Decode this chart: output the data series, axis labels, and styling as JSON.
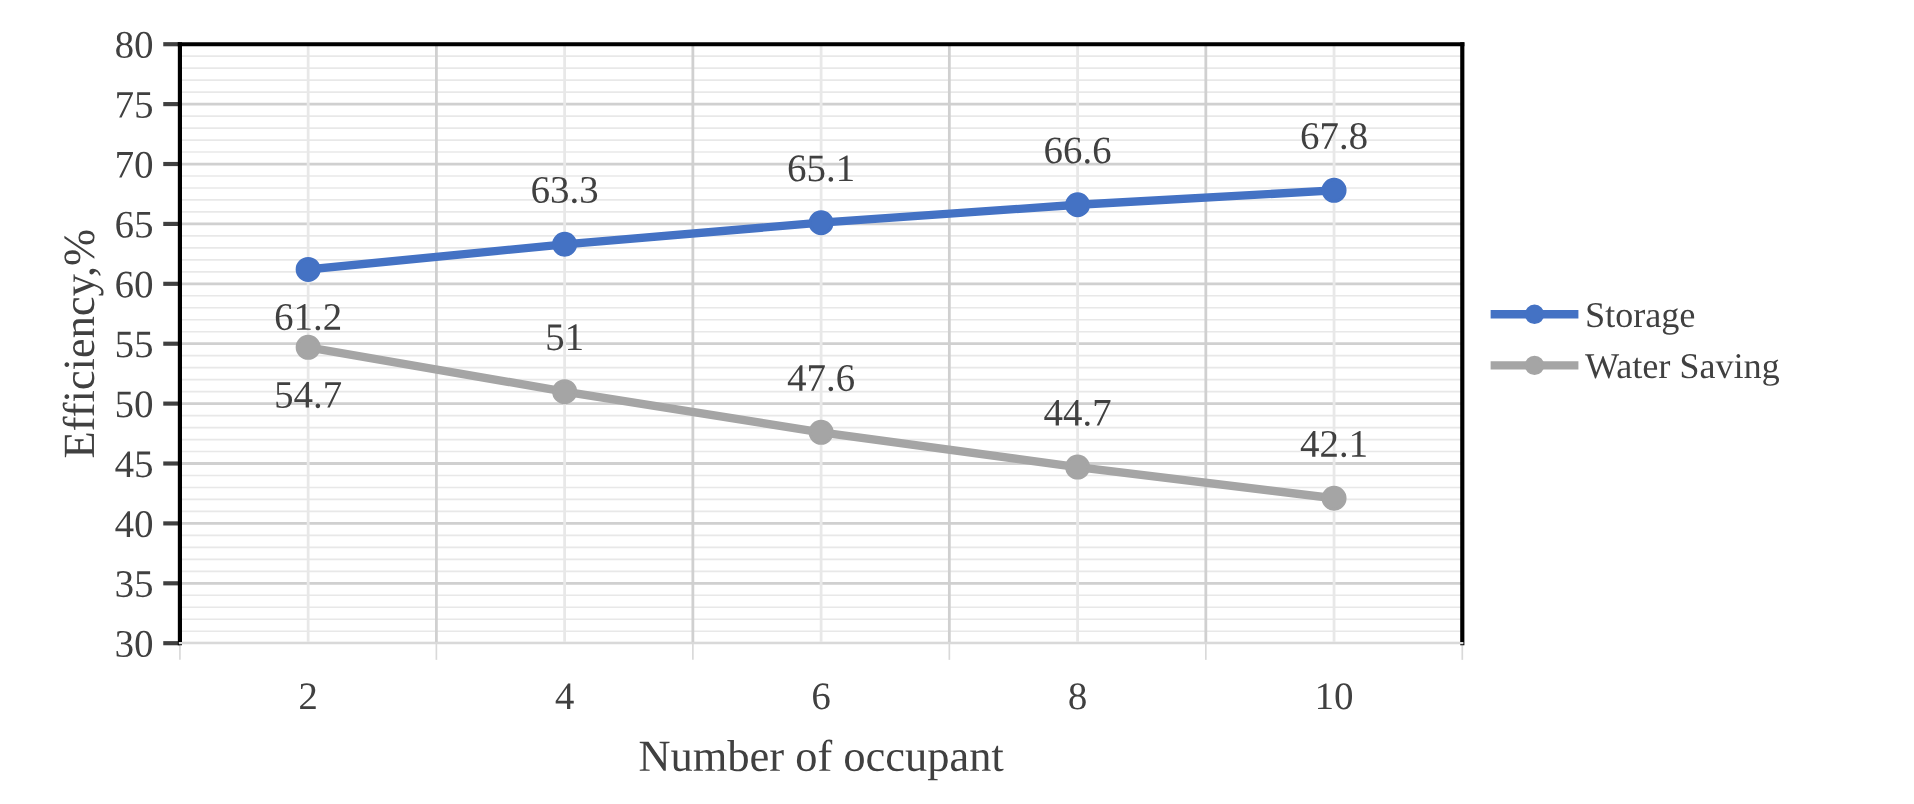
{
  "chart_data": {
    "type": "line",
    "xlabel": "Number of occupant",
    "ylabel": "Efficiency,%",
    "categories": [
      "2",
      "4",
      "6",
      "8",
      "10"
    ],
    "series": [
      {
        "name": "Storage",
        "color": "#4472c4",
        "values": [
          61.2,
          63.3,
          65.1,
          66.6,
          67.8
        ]
      },
      {
        "name": "Water Saving",
        "color": "#a5a5a5",
        "values": [
          54.7,
          51,
          47.6,
          44.7,
          42.1
        ]
      }
    ],
    "ylim": [
      30,
      80
    ],
    "yticks": [
      30,
      35,
      40,
      45,
      50,
      55,
      60,
      65,
      70,
      75,
      80
    ],
    "grid": true,
    "legend": "right",
    "marker": "circle",
    "line_style": "solid",
    "data_labels": true
  }
}
